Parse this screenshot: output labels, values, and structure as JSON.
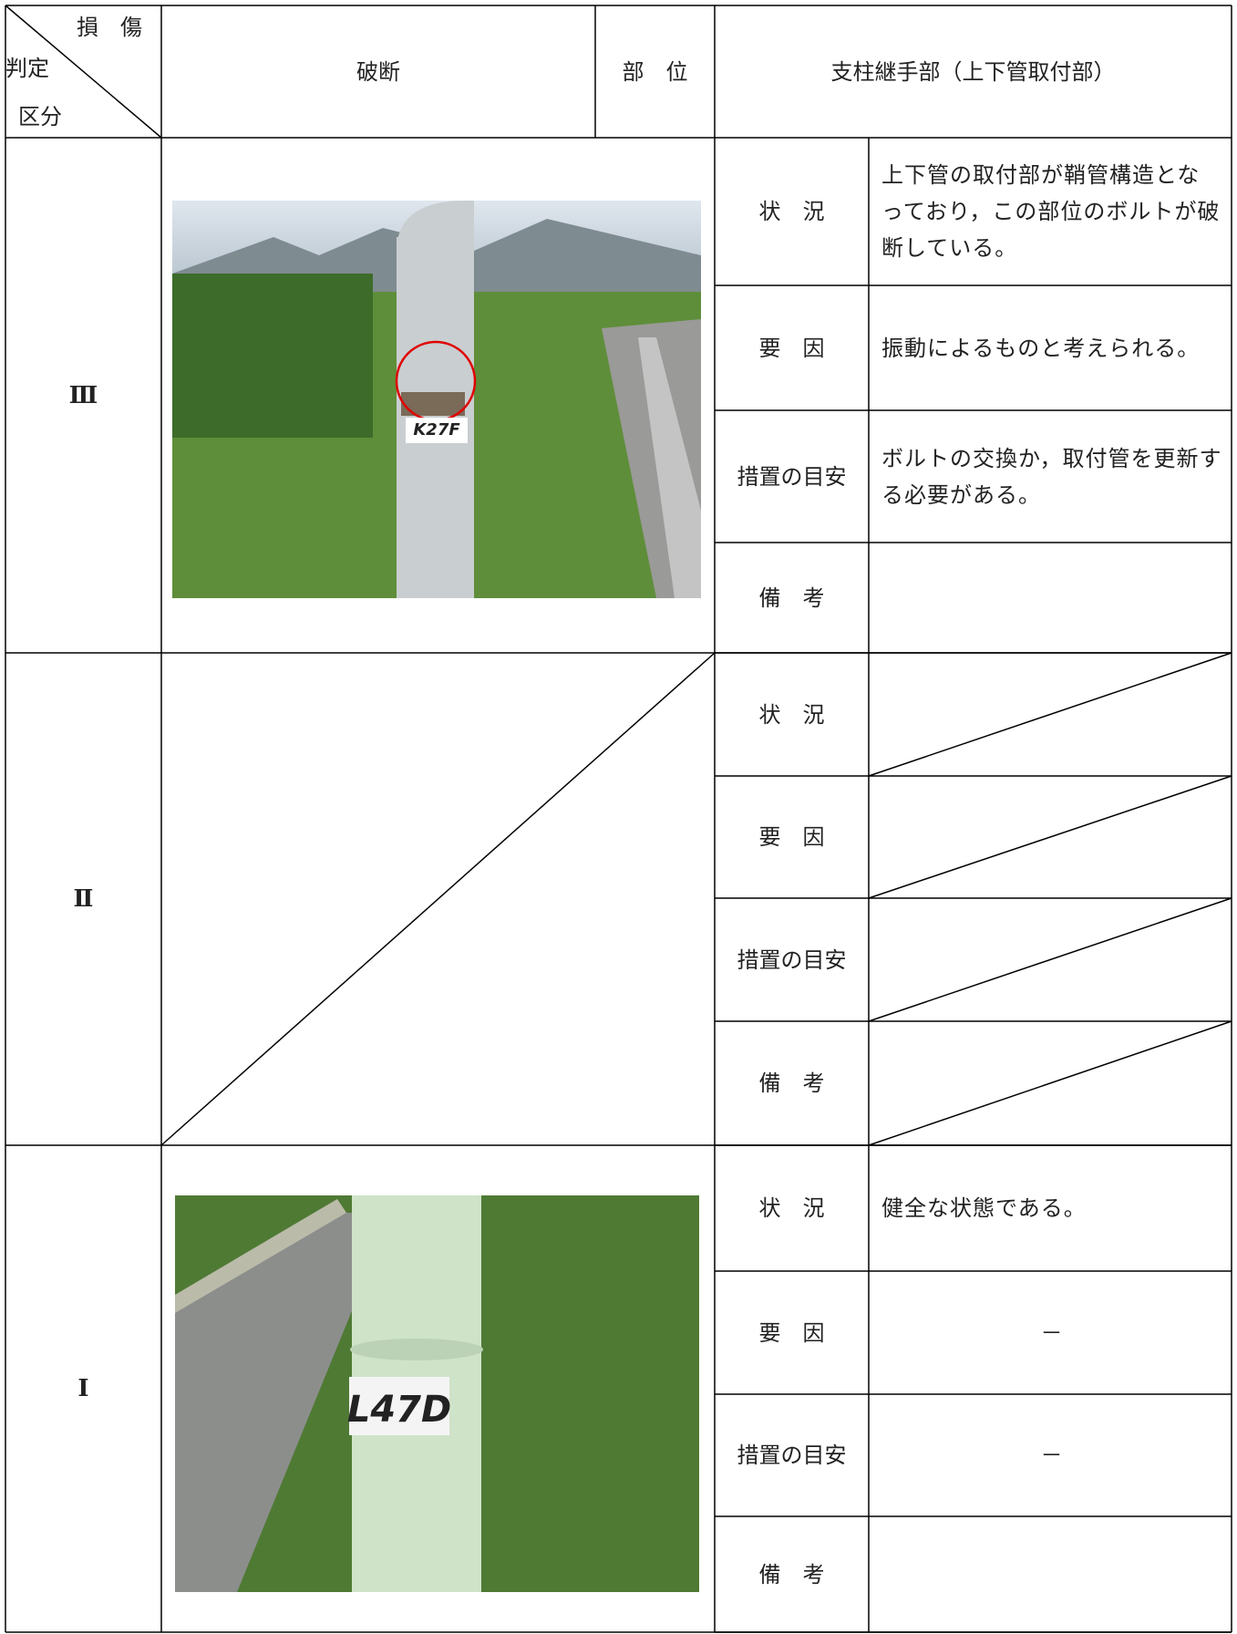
{
  "header": {
    "damage_top": "損　傷",
    "damage_mid": "判定",
    "damage_bottom": "区分",
    "type": "破断",
    "part_label": "部　位",
    "part": "支柱継手部（上下管取付部）"
  },
  "rows": [
    {
      "grade": "Ⅲ",
      "photo_label": "K27F",
      "items": [
        {
          "label": "状　況",
          "text": "上下管の取付部が鞘管構造となっており，この部位のボルトが破断している。"
        },
        {
          "label": "要　因",
          "text": "振動によるものと考えられる。"
        },
        {
          "label": "措置の目安",
          "text": "ボルトの交換か，取付管を更新する必要がある。"
        },
        {
          "label": "備　考"
        }
      ]
    },
    {
      "grade": "Ⅱ",
      "items": [
        {
          "label": "状　況"
        },
        {
          "label": "要　因"
        },
        {
          "label": "措置の目安"
        },
        {
          "label": "備　考"
        }
      ]
    },
    {
      "grade": "Ⅰ",
      "photo_label": "L47D",
      "items": [
        {
          "label": "状　況",
          "text": "健全な状態である。"
        },
        {
          "label": "要　因",
          "text": "－"
        },
        {
          "label": "措置の目安",
          "text": "－"
        },
        {
          "label": "備　考"
        }
      ]
    }
  ]
}
